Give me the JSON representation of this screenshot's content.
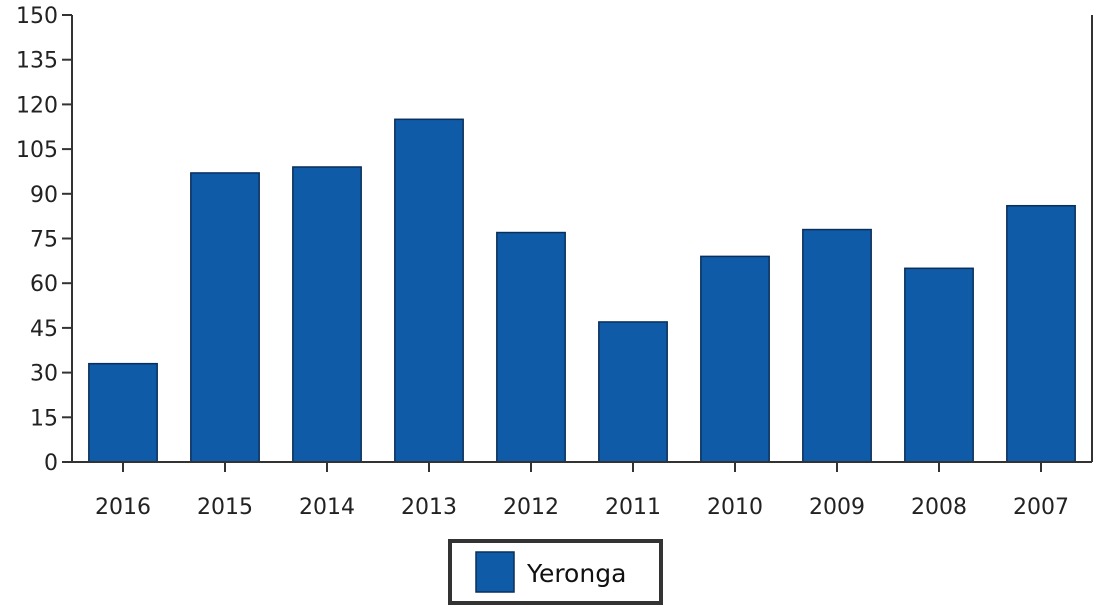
{
  "chart_data": {
    "type": "bar",
    "title": "",
    "xlabel": "",
    "ylabel": "",
    "categories": [
      "2016",
      "2015",
      "2014",
      "2013",
      "2012",
      "2011",
      "2010",
      "2009",
      "2008",
      "2007"
    ],
    "series": [
      {
        "name": "Yeronga",
        "values": [
          33,
          97,
          99,
          115,
          77,
          47,
          69,
          78,
          65,
          86
        ],
        "color": "#0f5ba7"
      }
    ],
    "ylim": [
      0,
      150
    ],
    "yticks": [
      "0",
      "15",
      "30",
      "45",
      "60",
      "75",
      "90",
      "105",
      "120",
      "135",
      "150"
    ],
    "grid": false,
    "legend": "bottom-center"
  }
}
